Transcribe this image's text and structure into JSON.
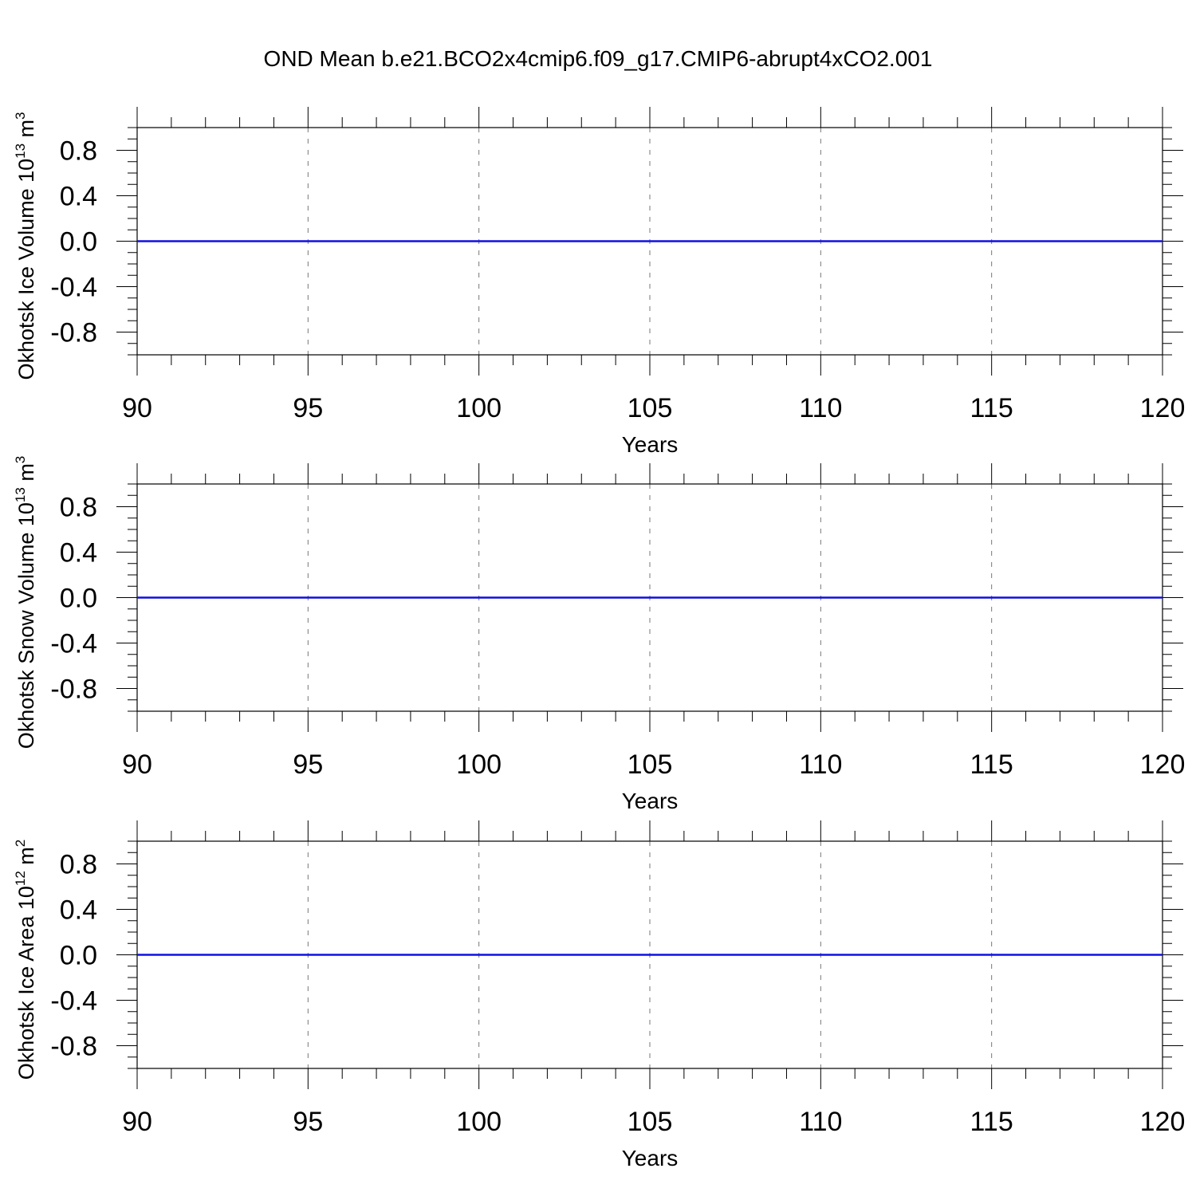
{
  "figure": {
    "title": "OND Mean b.e21.BCO2x4cmip6.f09_g17.CMIP6-abrupt4xCO2.001"
  },
  "colors": {
    "series": "#1010e0",
    "axis": "#000000",
    "grid": "#777777",
    "background": "#ffffff"
  },
  "chart_data": [
    {
      "type": "line",
      "ylabel_main": "Okhotsk Ice Volume 10",
      "ylabel_exp": "13",
      "ylabel_unit": "m",
      "ylabel_unit_exp": "3",
      "xlabel": "Years",
      "xlim": [
        90,
        120
      ],
      "ylim": [
        -1,
        1
      ],
      "x_ticks": [
        90,
        95,
        100,
        105,
        110,
        115,
        120
      ],
      "x_tick_labels": [
        "90",
        "95",
        "100",
        "105",
        "110",
        "115",
        "120"
      ],
      "y_ticks": [
        -0.8,
        -0.4,
        0.0,
        0.4,
        0.8
      ],
      "y_tick_labels": [
        "-0.8",
        "-0.4",
        "0.0",
        "0.4",
        "0.8"
      ],
      "grid": "vertical-dashed",
      "series": [
        {
          "x": [
            90,
            120
          ],
          "y": [
            0,
            0
          ]
        }
      ]
    },
    {
      "type": "line",
      "ylabel_main": "Okhotsk Snow Volume 10",
      "ylabel_exp": "13",
      "ylabel_unit": "m",
      "ylabel_unit_exp": "3",
      "xlabel": "Years",
      "xlim": [
        90,
        120
      ],
      "ylim": [
        -1,
        1
      ],
      "x_ticks": [
        90,
        95,
        100,
        105,
        110,
        115,
        120
      ],
      "x_tick_labels": [
        "90",
        "95",
        "100",
        "105",
        "110",
        "115",
        "120"
      ],
      "y_ticks": [
        -0.8,
        -0.4,
        0.0,
        0.4,
        0.8
      ],
      "y_tick_labels": [
        "-0.8",
        "-0.4",
        "0.0",
        "0.4",
        "0.8"
      ],
      "grid": "vertical-dashed",
      "series": [
        {
          "x": [
            90,
            120
          ],
          "y": [
            0,
            0
          ]
        }
      ]
    },
    {
      "type": "line",
      "ylabel_main": "Okhotsk Ice Area 10",
      "ylabel_exp": "12",
      "ylabel_unit": "m",
      "ylabel_unit_exp": "2",
      "xlabel": "Years",
      "xlim": [
        90,
        120
      ],
      "ylim": [
        -1,
        1
      ],
      "x_ticks": [
        90,
        95,
        100,
        105,
        110,
        115,
        120
      ],
      "x_tick_labels": [
        "90",
        "95",
        "100",
        "105",
        "110",
        "115",
        "120"
      ],
      "y_ticks": [
        -0.8,
        -0.4,
        0.0,
        0.4,
        0.8
      ],
      "y_tick_labels": [
        "-0.8",
        "-0.4",
        "0.0",
        "0.4",
        "0.8"
      ],
      "grid": "vertical-dashed",
      "series": [
        {
          "x": [
            90,
            120
          ],
          "y": [
            0,
            0
          ]
        }
      ]
    }
  ]
}
